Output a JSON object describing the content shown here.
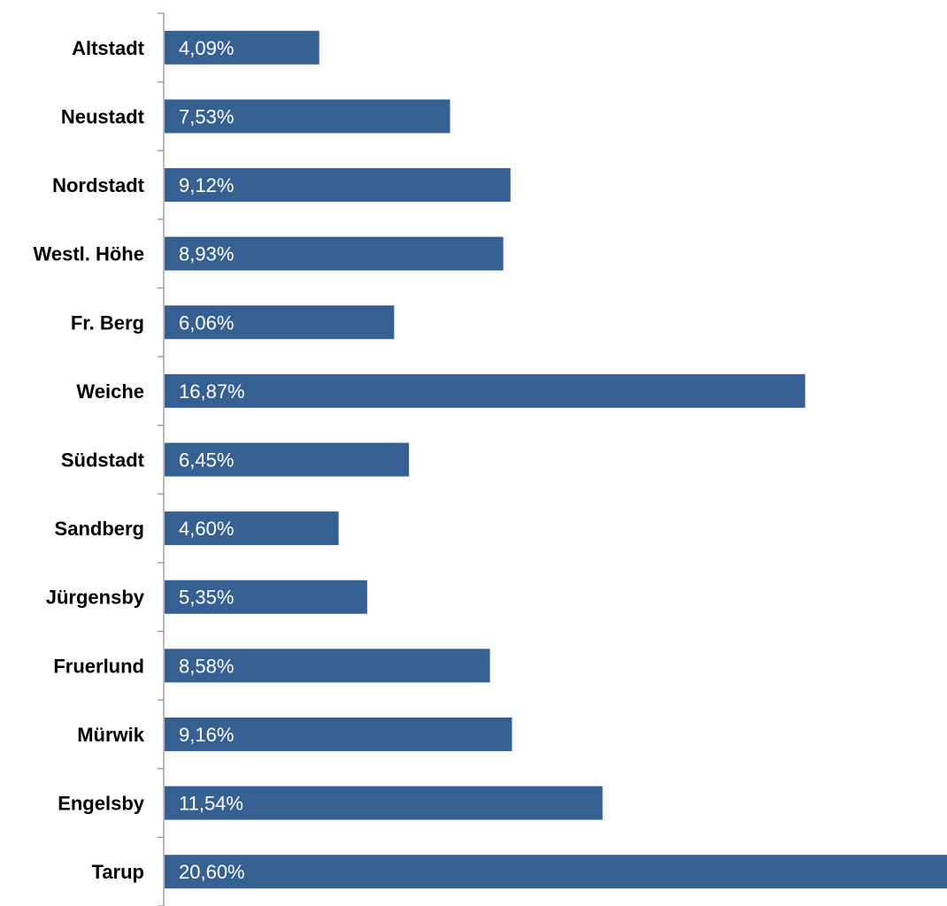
{
  "chart_data": {
    "type": "bar",
    "orientation": "horizontal",
    "title": "",
    "xlabel": "",
    "ylabel": "",
    "categories": [
      "Altstadt",
      "Neustadt",
      "Nordstadt",
      "Westl. Höhe",
      "Fr. Berg",
      "Weiche",
      "Südstadt",
      "Sandberg",
      "Jürgensby",
      "Fruerlund",
      "Mürwik",
      "Engelsby",
      "Tarup"
    ],
    "values": [
      4.09,
      7.53,
      9.12,
      8.93,
      6.06,
      16.87,
      6.45,
      4.6,
      5.35,
      8.58,
      9.16,
      11.54,
      20.6
    ],
    "data_labels": [
      "4,09%",
      "7,53%",
      "9,12%",
      "8,93%",
      "6,06%",
      "16,87%",
      "6,45%",
      "4,60%",
      "5,35%",
      "8,58%",
      "9,16%",
      "11,54%",
      "20,60%"
    ],
    "xlim": [
      0,
      20.6
    ],
    "grid": false,
    "legend": "none",
    "colors": {
      "bar": "#376092"
    }
  }
}
